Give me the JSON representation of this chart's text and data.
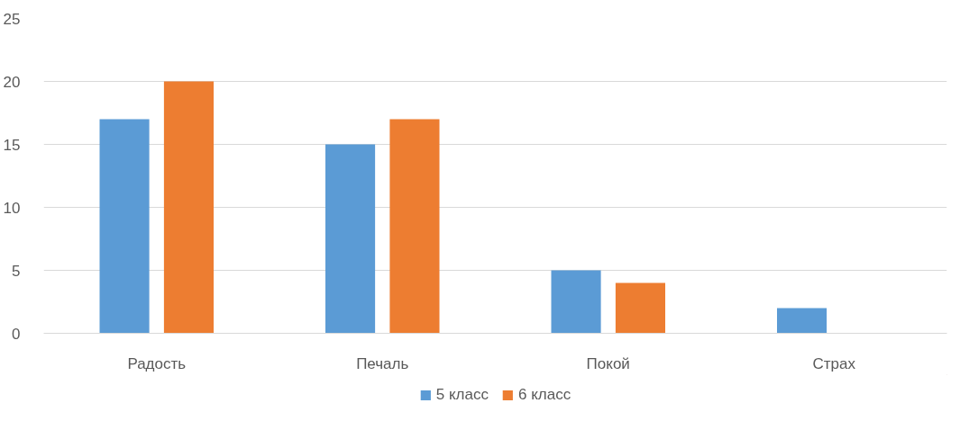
{
  "chart_data": {
    "type": "bar",
    "categories": [
      "Радость",
      "Печаль",
      "Покой",
      "Страх"
    ],
    "series": [
      {
        "name": "5 класс",
        "color": "#5b9bd5",
        "values": [
          17,
          15,
          5,
          2
        ]
      },
      {
        "name": "6 класс",
        "color": "#ed7d31",
        "values": [
          20,
          17,
          4,
          0
        ]
      }
    ],
    "ylim": [
      0,
      25
    ],
    "yticks": [
      0,
      5,
      10,
      15,
      20,
      25
    ],
    "grid": "y",
    "legend": "bottom"
  }
}
